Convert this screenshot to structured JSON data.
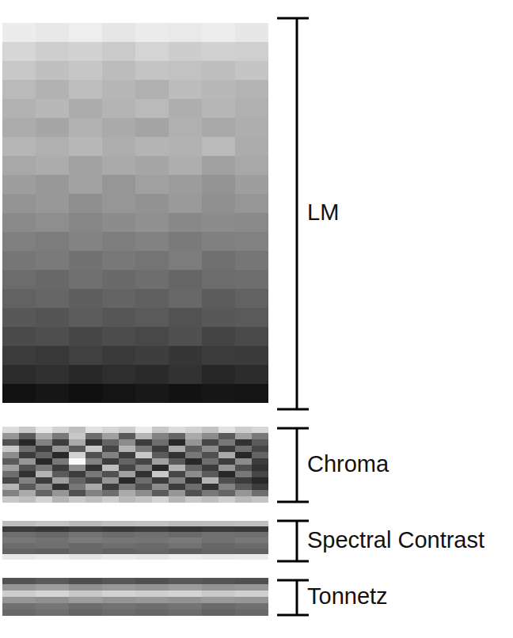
{
  "chart_data": [
    {
      "type": "heatmap",
      "title": "LM",
      "tick_labels": false,
      "cells": [
        [
          236,
          232,
          238,
          230,
          235,
          233,
          237,
          231
        ],
        [
          214,
          206,
          210,
          202,
          212,
          205,
          209,
          207
        ],
        [
          200,
          192,
          198,
          188,
          196,
          194,
          190,
          197
        ],
        [
          186,
          178,
          190,
          182,
          176,
          188,
          184,
          180
        ],
        [
          178,
          184,
          172,
          180,
          186,
          174,
          182,
          176
        ],
        [
          172,
          166,
          178,
          170,
          164,
          176,
          168,
          174
        ],
        [
          182,
          176,
          184,
          174,
          180,
          178,
          186,
          172
        ],
        [
          168,
          172,
          162,
          170,
          166,
          174,
          160,
          168
        ],
        [
          158,
          152,
          162,
          150,
          160,
          156,
          148,
          158
        ],
        [
          148,
          152,
          142,
          150,
          146,
          154,
          144,
          150
        ],
        [
          138,
          142,
          134,
          140,
          144,
          136,
          140,
          138
        ],
        [
          128,
          124,
          132,
          126,
          130,
          122,
          128,
          130
        ],
        [
          118,
          122,
          114,
          120,
          116,
          124,
          112,
          118
        ],
        [
          108,
          104,
          112,
          106,
          110,
          102,
          108,
          110
        ],
        [
          98,
          102,
          94,
          100,
          96,
          104,
          92,
          98
        ],
        [
          88,
          84,
          92,
          86,
          90,
          82,
          88,
          90
        ],
        [
          74,
          78,
          70,
          76,
          72,
          80,
          68,
          74
        ],
        [
          60,
          56,
          64,
          58,
          62,
          54,
          60,
          58
        ],
        [
          44,
          48,
          40,
          46,
          42,
          50,
          38,
          44
        ],
        [
          18,
          22,
          16,
          20,
          24,
          18,
          22,
          20
        ]
      ]
    },
    {
      "type": "heatmap",
      "title": "Chroma",
      "tick_labels": false,
      "cells": [
        [
          220,
          200,
          230,
          210,
          190,
          225,
          215,
          205,
          235,
          200,
          220,
          210,
          195,
          225,
          205,
          215
        ],
        [
          150,
          90,
          170,
          120,
          200,
          110,
          160,
          90,
          180,
          130,
          100,
          170,
          140,
          90,
          160,
          120
        ],
        [
          80,
          40,
          130,
          60,
          170,
          50,
          100,
          140,
          60,
          110,
          40,
          150,
          70,
          120,
          50,
          90
        ],
        [
          200,
          110,
          60,
          150,
          90,
          200,
          70,
          180,
          120,
          60,
          170,
          90,
          140,
          60,
          110,
          70
        ],
        [
          140,
          60,
          100,
          40,
          210,
          80,
          130,
          60,
          200,
          90,
          50,
          120,
          80,
          170,
          40,
          100
        ],
        [
          90,
          150,
          40,
          120,
          250,
          130,
          60,
          100,
          70,
          160,
          90,
          40,
          110,
          60,
          140,
          60
        ],
        [
          160,
          80,
          120,
          60,
          140,
          50,
          190,
          70,
          130,
          40,
          180,
          100,
          60,
          150,
          80,
          50
        ],
        [
          110,
          50,
          180,
          90,
          60,
          120,
          80,
          160,
          50,
          200,
          70,
          140,
          90,
          40,
          120,
          70
        ],
        [
          70,
          130,
          60,
          160,
          100,
          70,
          150,
          40,
          110,
          60,
          130,
          50,
          180,
          80,
          60,
          40
        ],
        [
          180,
          90,
          140,
          50,
          120,
          170,
          60,
          120,
          80,
          140,
          60,
          110,
          50,
          130,
          90,
          60
        ],
        [
          130,
          170,
          100,
          150,
          80,
          130,
          110,
          170,
          140,
          90,
          150,
          80,
          120,
          100,
          150,
          110
        ],
        [
          200,
          190,
          210,
          180,
          200,
          190,
          205,
          185,
          195,
          210,
          180,
          200,
          190,
          205,
          185,
          195
        ]
      ]
    },
    {
      "type": "heatmap",
      "title": "Spectral Contrast",
      "tick_labels": false,
      "cells": [
        [
          190,
          196,
          186,
          192,
          194,
          188,
          190,
          192
        ],
        [
          60,
          56,
          64,
          58,
          62,
          54,
          60,
          58
        ],
        [
          110,
          104,
          116,
          108,
          112,
          106,
          114,
          110
        ],
        [
          120,
          114,
          124,
          118,
          116,
          122,
          112,
          120
        ],
        [
          108,
          112,
          104,
          110,
          106,
          114,
          102,
          108
        ],
        [
          100,
          96,
          104,
          98,
          102,
          94,
          100,
          98
        ],
        [
          232,
          236,
          228,
          234,
          230,
          236,
          232,
          234
        ]
      ]
    },
    {
      "type": "heatmap",
      "title": "Tonnetz",
      "tick_labels": false,
      "cells": [
        [
          82,
          90,
          78,
          86,
          80,
          88,
          84,
          80
        ],
        [
          150,
          158,
          144,
          152,
          148,
          156,
          146,
          150
        ],
        [
          205,
          214,
          200,
          210,
          206,
          212,
          202,
          208
        ],
        [
          150,
          144,
          156,
          148,
          152,
          146,
          154,
          150
        ],
        [
          112,
          118,
          108,
          114,
          110,
          116,
          106,
          112
        ],
        [
          104,
          110,
          100,
          106,
          102,
          108,
          98,
          104
        ]
      ]
    }
  ]
}
